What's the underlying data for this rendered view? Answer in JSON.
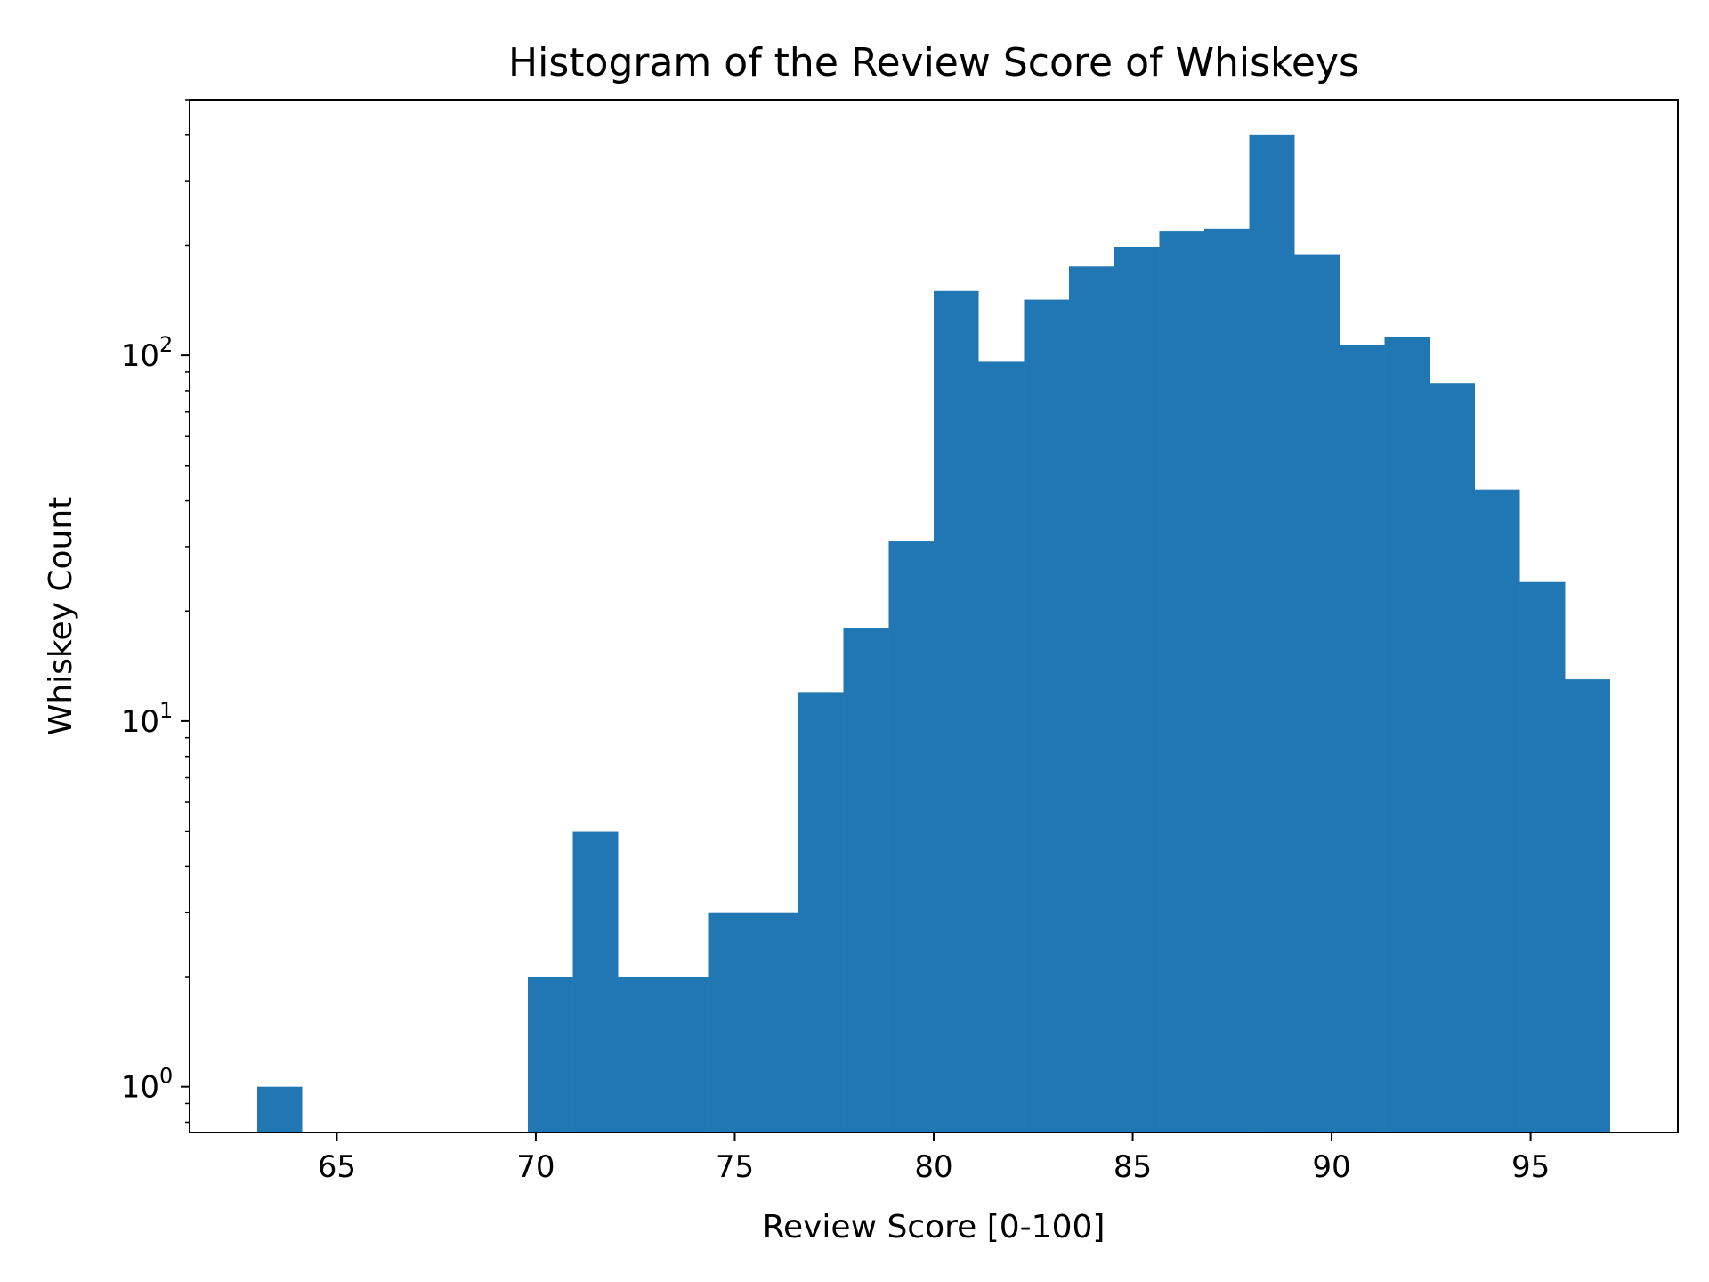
{
  "chart_data": {
    "type": "bar",
    "title": "Histogram of the Review Score of Whiskeys",
    "xlabel": "Review Score [0-100]",
    "ylabel": "Whiskey Count",
    "yscale": "log",
    "xlim": [
      61.3,
      98.7
    ],
    "ylim": [
      0.75,
      500
    ],
    "x_ticks": [
      65,
      70,
      75,
      80,
      85,
      90,
      95
    ],
    "y_ticks": [
      {
        "value": 1,
        "base": "10",
        "exp": "0"
      },
      {
        "value": 10,
        "base": "10",
        "exp": "1"
      },
      {
        "value": 100,
        "base": "10",
        "exp": "2"
      }
    ],
    "bins": [
      {
        "x0": 63.0,
        "x1": 64.13,
        "count": 1
      },
      {
        "x0": 69.8,
        "x1": 70.93,
        "count": 2
      },
      {
        "x0": 70.93,
        "x1": 72.07,
        "count": 5
      },
      {
        "x0": 72.07,
        "x1": 73.2,
        "count": 2
      },
      {
        "x0": 73.2,
        "x1": 74.33,
        "count": 2
      },
      {
        "x0": 74.33,
        "x1": 75.47,
        "count": 3
      },
      {
        "x0": 75.47,
        "x1": 76.6,
        "count": 3
      },
      {
        "x0": 76.6,
        "x1": 77.73,
        "count": 12
      },
      {
        "x0": 77.73,
        "x1": 78.87,
        "count": 18
      },
      {
        "x0": 78.87,
        "x1": 80.0,
        "count": 31
      },
      {
        "x0": 80.0,
        "x1": 81.13,
        "count": 150
      },
      {
        "x0": 81.13,
        "x1": 82.27,
        "count": 96
      },
      {
        "x0": 82.27,
        "x1": 83.4,
        "count": 142
      },
      {
        "x0": 83.4,
        "x1": 84.53,
        "count": 175
      },
      {
        "x0": 84.53,
        "x1": 85.67,
        "count": 198
      },
      {
        "x0": 85.67,
        "x1": 86.8,
        "count": 218
      },
      {
        "x0": 86.8,
        "x1": 87.93,
        "count": 222
      },
      {
        "x0": 87.93,
        "x1": 89.07,
        "count": 400
      },
      {
        "x0": 89.07,
        "x1": 90.2,
        "count": 189
      },
      {
        "x0": 90.2,
        "x1": 91.33,
        "count": 107
      },
      {
        "x0": 91.33,
        "x1": 92.47,
        "count": 112
      },
      {
        "x0": 92.47,
        "x1": 93.6,
        "count": 84
      },
      {
        "x0": 93.6,
        "x1": 94.73,
        "count": 43
      },
      {
        "x0": 94.73,
        "x1": 95.87,
        "count": 24
      },
      {
        "x0": 95.87,
        "x1": 97.0,
        "count": 13
      }
    ],
    "bar_color": "#2077b4",
    "grid": false,
    "legend": "none"
  }
}
